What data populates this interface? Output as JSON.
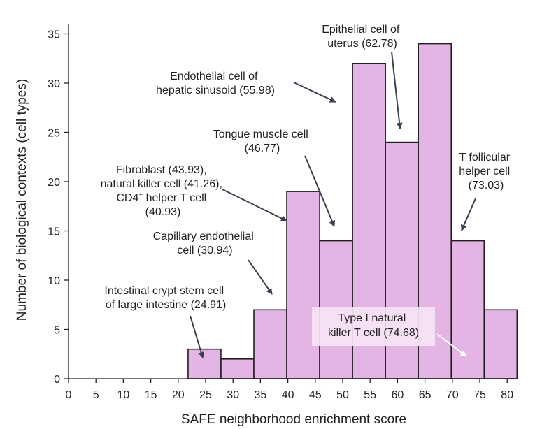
{
  "chart_data": {
    "type": "bar",
    "xlabel": "SAFE neighborhood enrichment score",
    "ylabel": "Number of biological contexts (cell types)",
    "xlim": [
      0,
      80
    ],
    "ylim": [
      0,
      35
    ],
    "xticks": [
      "0",
      "5",
      "10",
      "15",
      "20",
      "25",
      "30",
      "35",
      "40",
      "45",
      "50",
      "55",
      "60",
      "65",
      "70",
      "75",
      "80"
    ],
    "yticks": [
      "0",
      "5",
      "10",
      "15",
      "20",
      "25",
      "30",
      "35"
    ],
    "bins": [
      {
        "start": 21.8,
        "end": 27.8,
        "value": 3
      },
      {
        "start": 27.8,
        "end": 33.8,
        "value": 2
      },
      {
        "start": 33.8,
        "end": 39.8,
        "value": 7
      },
      {
        "start": 39.8,
        "end": 45.8,
        "value": 19
      },
      {
        "start": 45.8,
        "end": 51.8,
        "value": 14
      },
      {
        "start": 51.8,
        "end": 57.8,
        "value": 32
      },
      {
        "start": 57.8,
        "end": 63.8,
        "value": 24
      },
      {
        "start": 63.8,
        "end": 69.8,
        "value": 34
      },
      {
        "start": 69.8,
        "end": 75.8,
        "value": 14
      },
      {
        "start": 75.8,
        "end": 81.8,
        "value": 7
      }
    ],
    "colors": {
      "bar": "#e4b4e4",
      "edge": "#231f20",
      "text": "#231f20",
      "light_arrow": "#ffffff"
    },
    "annotations": [
      {
        "lines": [
          "Intestinal crypt stem cell",
          "of large intestine (24.91)"
        ]
      },
      {
        "lines": [
          "Capillary endothelial",
          "cell (30.94)"
        ]
      },
      {
        "lines": [
          "Fibroblast (43.93),",
          "natural killer cell (41.26),",
          "CD4",
          "+",
          " helper T cell",
          "(40.93)"
        ]
      },
      {
        "lines": [
          "Tongue muscle cell",
          "(46.77)"
        ]
      },
      {
        "lines": [
          "Endothelial cell of",
          "hepatic sinusoid (55.98)"
        ]
      },
      {
        "lines": [
          "Epithelial cell of",
          "uterus (62.78)"
        ]
      },
      {
        "lines": [
          "T follicular",
          "helper cell",
          "(73.03)"
        ]
      },
      {
        "lines": [
          "Type I natural",
          "killer T cell (74.68)"
        ]
      }
    ]
  }
}
